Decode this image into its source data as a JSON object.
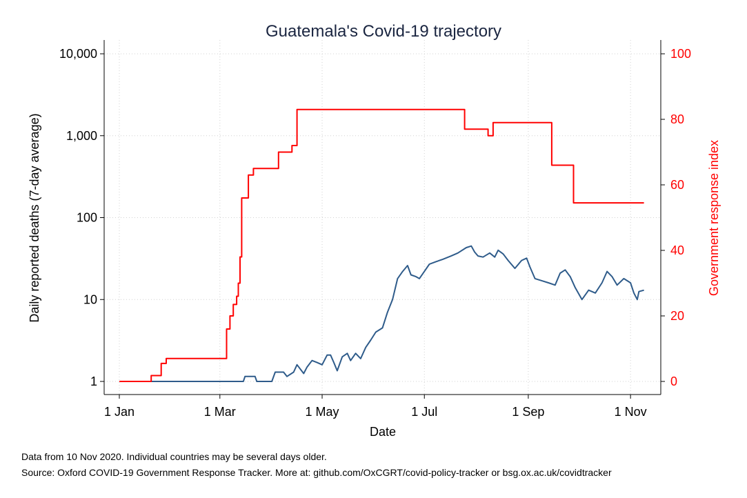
{
  "chart_data": {
    "type": "line",
    "title": "Guatemala's Covid-19 trajectory",
    "xlabel": "Date",
    "ylabel": "Daily reported deaths (7-day average)",
    "y2label": "Government response index",
    "x_ticks": [
      "1 Jan",
      "1 Mar",
      "1 May",
      "1 Jul",
      "1 Sep",
      "1 Nov"
    ],
    "y_ticks": [
      "1",
      "10",
      "100",
      "1,000",
      "10,000"
    ],
    "y2_ticks": [
      "0",
      "20",
      "40",
      "60",
      "80",
      "100"
    ],
    "y_scale": "log",
    "ylim": [
      1,
      10000
    ],
    "y2lim": [
      0,
      100
    ],
    "xlim": [
      "2020-01-01",
      "2020-11-10"
    ],
    "grid": true,
    "series": [
      {
        "axis": "left",
        "color": "#2e5b8a",
        "points": [
          [
            "2020-01-01",
            1
          ],
          [
            "2020-03-15",
            1
          ],
          [
            "2020-03-16",
            1.15
          ],
          [
            "2020-03-22",
            1.15
          ],
          [
            "2020-03-23",
            1
          ],
          [
            "2020-04-01",
            1
          ],
          [
            "2020-04-03",
            1.3
          ],
          [
            "2020-04-08",
            1.3
          ],
          [
            "2020-04-10",
            1.15
          ],
          [
            "2020-04-14",
            1.3
          ],
          [
            "2020-04-16",
            1.6
          ],
          [
            "2020-04-20",
            1.25
          ],
          [
            "2020-04-22",
            1.5
          ],
          [
            "2020-04-25",
            1.8
          ],
          [
            "2020-04-28",
            1.7
          ],
          [
            "2020-05-01",
            1.6
          ],
          [
            "2020-05-04",
            2.1
          ],
          [
            "2020-05-06",
            2.1
          ],
          [
            "2020-05-08",
            1.7
          ],
          [
            "2020-05-10",
            1.35
          ],
          [
            "2020-05-13",
            2.0
          ],
          [
            "2020-05-16",
            2.2
          ],
          [
            "2020-05-18",
            1.8
          ],
          [
            "2020-05-21",
            2.2
          ],
          [
            "2020-05-24",
            1.9
          ],
          [
            "2020-05-27",
            2.6
          ],
          [
            "2020-05-30",
            3.2
          ],
          [
            "2020-06-02",
            4.0
          ],
          [
            "2020-06-06",
            4.5
          ],
          [
            "2020-06-09",
            7.0
          ],
          [
            "2020-06-12",
            10.0
          ],
          [
            "2020-06-15",
            18.0
          ],
          [
            "2020-06-18",
            22.0
          ],
          [
            "2020-06-21",
            26.0
          ],
          [
            "2020-06-23",
            20.0
          ],
          [
            "2020-06-26",
            19.0
          ],
          [
            "2020-06-28",
            18.0
          ],
          [
            "2020-07-01",
            22.0
          ],
          [
            "2020-07-04",
            27.0
          ],
          [
            "2020-07-08",
            29.0
          ],
          [
            "2020-07-12",
            31.0
          ],
          [
            "2020-07-17",
            34.0
          ],
          [
            "2020-07-21",
            37.0
          ],
          [
            "2020-07-26",
            43.0
          ],
          [
            "2020-07-29",
            45.0
          ],
          [
            "2020-07-31",
            38.0
          ],
          [
            "2020-08-02",
            34.0
          ],
          [
            "2020-08-05",
            33.0
          ],
          [
            "2020-08-09",
            37.0
          ],
          [
            "2020-08-12",
            33.0
          ],
          [
            "2020-08-14",
            40.0
          ],
          [
            "2020-08-17",
            36.0
          ],
          [
            "2020-08-20",
            30.0
          ],
          [
            "2020-08-24",
            24.0
          ],
          [
            "2020-08-28",
            30.0
          ],
          [
            "2020-08-31",
            32.0
          ],
          [
            "2020-09-02",
            25.0
          ],
          [
            "2020-09-05",
            18.0
          ],
          [
            "2020-09-09",
            17.0
          ],
          [
            "2020-09-13",
            16.0
          ],
          [
            "2020-09-17",
            15.0
          ],
          [
            "2020-09-20",
            21.0
          ],
          [
            "2020-09-23",
            23.0
          ],
          [
            "2020-09-26",
            19.0
          ],
          [
            "2020-09-29",
            14.0
          ],
          [
            "2020-10-03",
            10.0
          ],
          [
            "2020-10-07",
            13.0
          ],
          [
            "2020-10-11",
            12.0
          ],
          [
            "2020-10-15",
            16.0
          ],
          [
            "2020-10-18",
            22.0
          ],
          [
            "2020-10-21",
            19.0
          ],
          [
            "2020-10-24",
            15.0
          ],
          [
            "2020-10-28",
            18.0
          ],
          [
            "2020-11-01",
            16.0
          ],
          [
            "2020-11-03",
            12.0
          ],
          [
            "2020-11-05",
            10.0
          ],
          [
            "2020-11-06",
            12.5
          ],
          [
            "2020-11-09",
            13.0
          ]
        ]
      },
      {
        "axis": "right",
        "color": "#ff0000",
        "step": true,
        "points": [
          [
            "2020-01-01",
            0
          ],
          [
            "2020-01-20",
            1.8
          ],
          [
            "2020-01-26",
            5.5
          ],
          [
            "2020-01-29",
            7.0
          ],
          [
            "2020-03-05",
            16.0
          ],
          [
            "2020-03-07",
            20.0
          ],
          [
            "2020-03-09",
            23.5
          ],
          [
            "2020-03-11",
            26.0
          ],
          [
            "2020-03-12",
            30.0
          ],
          [
            "2020-03-13",
            38.0
          ],
          [
            "2020-03-14",
            56.0
          ],
          [
            "2020-03-18",
            63.0
          ],
          [
            "2020-03-21",
            65.0
          ],
          [
            "2020-04-05",
            70.0
          ],
          [
            "2020-04-13",
            72.0
          ],
          [
            "2020-04-16",
            83.0
          ],
          [
            "2020-07-25",
            77.0
          ],
          [
            "2020-08-08",
            75.0
          ],
          [
            "2020-08-11",
            79.0
          ],
          [
            "2020-09-15",
            66.0
          ],
          [
            "2020-09-28",
            54.5
          ],
          [
            "2020-11-09",
            54.5
          ]
        ]
      }
    ]
  },
  "notes": {
    "line1": "Data from 10 Nov 2020. Individual countries may be several days older.",
    "line2": "Source: Oxford COVID-19 Government Response Tracker. More at: github.com/OxCGRT/covid-policy-tracker or bsg.ox.ac.uk/covidtracker"
  }
}
